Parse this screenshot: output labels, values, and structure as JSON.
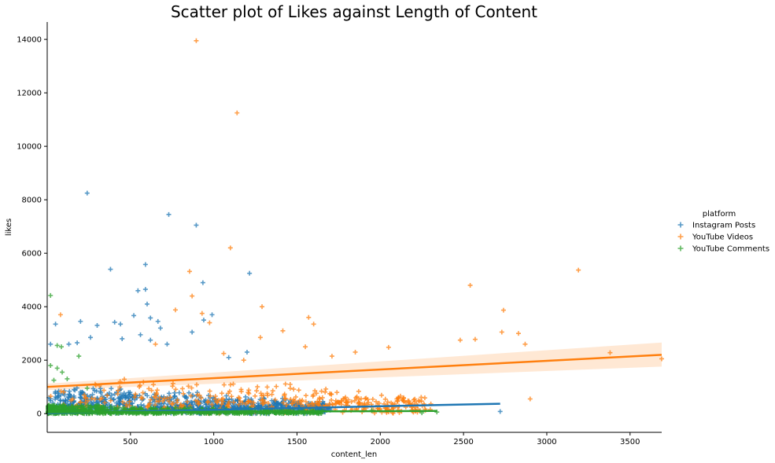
{
  "chart_data": {
    "type": "scatter",
    "title": "Scatter plot of Likes against Length of Content",
    "xlabel": "content_len",
    "ylabel": "likes",
    "xlim": [
      0,
      3690
    ],
    "ylim": [
      -700,
      14650
    ],
    "x_ticks": [
      500,
      1000,
      1500,
      2000,
      2500,
      3000,
      3500
    ],
    "x_tick_labels": [
      "500",
      "1000",
      "1500",
      "2000",
      "2500",
      "3000",
      "3500"
    ],
    "y_ticks": [
      0,
      2000,
      4000,
      6000,
      8000,
      10000,
      12000,
      14000
    ],
    "y_tick_labels": [
      "0",
      "2000",
      "4000",
      "6000",
      "8000",
      "10000",
      "12000",
      "14000"
    ],
    "grid": false,
    "marker": "plus",
    "legend": {
      "title": "platform",
      "placement": "right",
      "entries": [
        "Instagram Posts",
        "YouTube Videos",
        "YouTube Comments"
      ]
    },
    "series": [
      {
        "name": "Instagram Posts",
        "color": "#1f77b4",
        "outliers": [
          [
            240,
            8250
          ],
          [
            730,
            7450
          ],
          [
            895,
            7050
          ],
          [
            590,
            5580
          ],
          [
            380,
            5400
          ],
          [
            1215,
            5250
          ],
          [
            935,
            4900
          ],
          [
            590,
            4650
          ],
          [
            545,
            4600
          ],
          [
            600,
            4100
          ],
          [
            520,
            3670
          ],
          [
            990,
            3700
          ],
          [
            440,
            3350
          ],
          [
            665,
            3450
          ],
          [
            405,
            3420
          ],
          [
            680,
            3200
          ],
          [
            560,
            2950
          ],
          [
            620,
            2750
          ],
          [
            720,
            2600
          ],
          [
            870,
            3050
          ],
          [
            450,
            2800
          ],
          [
            300,
            3300
          ],
          [
            260,
            2850
          ],
          [
            180,
            2650
          ],
          [
            130,
            2600
          ],
          [
            620,
            3580
          ],
          [
            1200,
            2300
          ],
          [
            940,
            3500
          ],
          [
            50,
            3350
          ],
          [
            20,
            2600
          ],
          [
            200,
            3450
          ],
          [
            1090,
            2100
          ],
          [
            2720,
            80
          ]
        ],
        "trend": {
          "x": [
            0,
            2720
          ],
          "y": [
            15,
            370
          ]
        }
      },
      {
        "name": "YouTube Videos",
        "color": "#ff7f0e",
        "outliers": [
          [
            895,
            13950
          ],
          [
            1140,
            11250
          ],
          [
            1100,
            6200
          ],
          [
            855,
            5320
          ],
          [
            870,
            4400
          ],
          [
            2540,
            4800
          ],
          [
            3190,
            5370
          ],
          [
            1290,
            4000
          ],
          [
            80,
            3700
          ],
          [
            770,
            3880
          ],
          [
            1570,
            3600
          ],
          [
            1600,
            3350
          ],
          [
            2740,
            3870
          ],
          [
            2730,
            3050
          ],
          [
            2830,
            3000
          ],
          [
            1415,
            3100
          ],
          [
            930,
            3750
          ],
          [
            975,
            3400
          ],
          [
            1280,
            2850
          ],
          [
            2050,
            2480
          ],
          [
            2480,
            2750
          ],
          [
            2570,
            2780
          ],
          [
            2870,
            2600
          ],
          [
            3380,
            2280
          ],
          [
            3690,
            2050
          ],
          [
            2900,
            550
          ],
          [
            1550,
            2500
          ],
          [
            1710,
            2150
          ],
          [
            1850,
            2300
          ],
          [
            650,
            2600
          ],
          [
            1060,
            2250
          ],
          [
            1180,
            2000
          ]
        ],
        "trend": {
          "x": [
            0,
            3690
          ],
          "y": [
            1000,
            2200
          ]
        },
        "ci_band": {
          "x": [
            0,
            3690
          ],
          "lower": [
            880,
            1760
          ],
          "upper": [
            1120,
            2660
          ]
        }
      },
      {
        "name": "YouTube Comments",
        "color": "#2ca02c",
        "outliers": [
          [
            20,
            4420
          ],
          [
            60,
            2550
          ],
          [
            85,
            2500
          ],
          [
            20,
            1800
          ],
          [
            60,
            1700
          ],
          [
            90,
            1550
          ],
          [
            120,
            1300
          ],
          [
            190,
            2150
          ],
          [
            40,
            1250
          ],
          [
            240,
            950
          ],
          [
            2250,
            30
          ],
          [
            2340,
            60
          ],
          [
            1600,
            100
          ],
          [
            1950,
            120
          ]
        ],
        "trend": {
          "x": [
            0,
            2340
          ],
          "y": [
            50,
            100
          ]
        }
      }
    ]
  }
}
